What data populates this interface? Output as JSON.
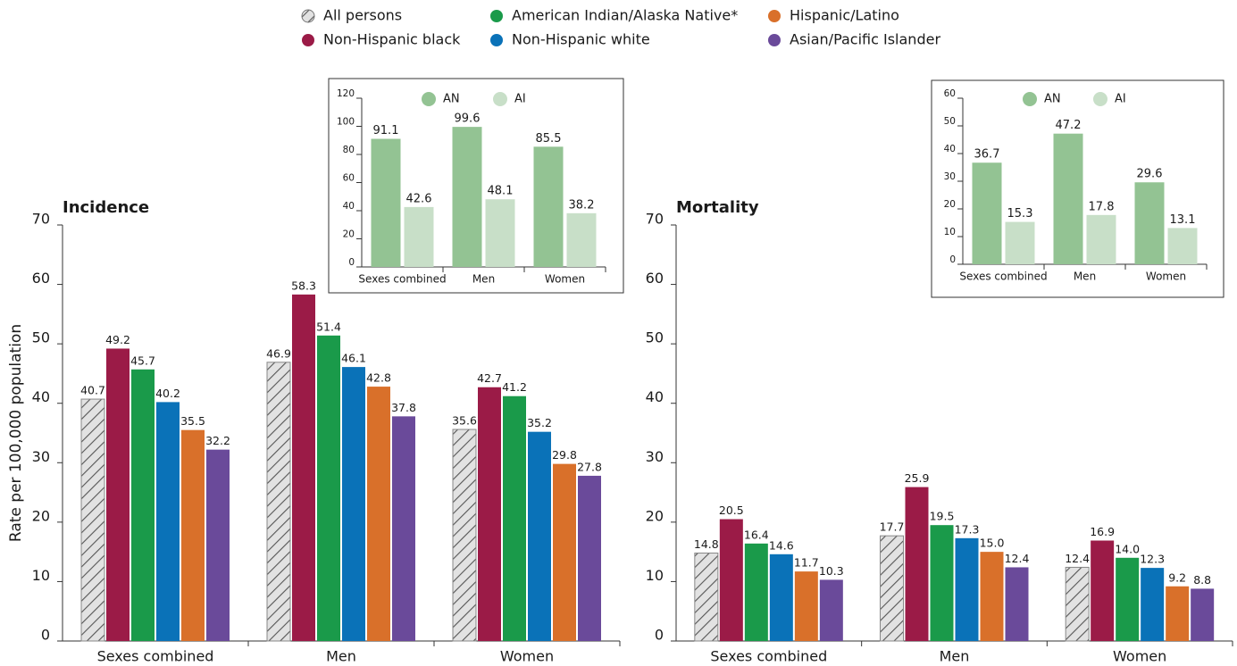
{
  "chart_data": [
    {
      "type": "bar",
      "title": "Incidence",
      "ylabel": "Rate per 100,000 population",
      "categories": [
        "Sexes combined",
        "Men",
        "Women"
      ],
      "ylim": [
        0,
        70
      ],
      "yticks": [
        0,
        10,
        20,
        30,
        40,
        50,
        60,
        70
      ],
      "series": [
        {
          "name": "All persons",
          "color": "#d9d9d9",
          "hatch": true,
          "values": [
            40.7,
            46.9,
            35.6
          ]
        },
        {
          "name": "Non-Hispanic black",
          "color": "#9b1b47",
          "values": [
            49.2,
            58.3,
            42.7
          ]
        },
        {
          "name": "American Indian/Alaska Native*",
          "color": "#1a9a4a",
          "values": [
            45.7,
            51.4,
            41.2
          ]
        },
        {
          "name": "Non-Hispanic white",
          "color": "#0a72b8",
          "values": [
            40.2,
            46.1,
            35.2
          ]
        },
        {
          "name": "Hispanic/Latino",
          "color": "#d9702a",
          "values": [
            35.5,
            42.8,
            29.8
          ]
        },
        {
          "name": "Asian/Pacific Islander",
          "color": "#6a4a9a",
          "values": [
            32.2,
            37.8,
            27.8
          ]
        }
      ]
    },
    {
      "type": "bar",
      "title": "Mortality",
      "categories": [
        "Sexes combined",
        "Men",
        "Women"
      ],
      "ylim": [
        0,
        70
      ],
      "yticks": [
        0,
        10,
        20,
        30,
        40,
        50,
        60,
        70
      ],
      "series": [
        {
          "values": [
            14.8,
            17.7,
            12.4
          ]
        },
        {
          "values": [
            20.5,
            25.9,
            16.9
          ]
        },
        {
          "values": [
            16.4,
            19.5,
            14.0
          ],
          "value_labels": [
            "16.4",
            "19.5",
            "14.0"
          ]
        },
        {
          "values": [
            14.6,
            17.3,
            12.3
          ]
        },
        {
          "values": [
            11.7,
            15.0,
            9.2
          ],
          "value_labels": [
            "11.7",
            "15.0",
            "9.2"
          ]
        },
        {
          "values": [
            10.3,
            12.4,
            8.8
          ]
        }
      ]
    },
    {
      "type": "bar",
      "categories": [
        "Sexes combined",
        "Men",
        "Women"
      ],
      "ylim": [
        0,
        120
      ],
      "yticks": [
        0,
        20,
        40,
        60,
        80,
        100,
        120
      ],
      "series": [
        {
          "name": "AN",
          "color": "#93c393",
          "values": [
            91.1,
            99.6,
            85.5
          ]
        },
        {
          "name": "AI",
          "color": "#c8dfc8",
          "values": [
            42.6,
            48.1,
            38.2
          ]
        }
      ]
    },
    {
      "type": "bar",
      "categories": [
        "Sexes combined",
        "Men",
        "Women"
      ],
      "ylim": [
        0,
        60
      ],
      "yticks": [
        0,
        10,
        20,
        30,
        40,
        50,
        60
      ],
      "series": [
        {
          "name": "AN",
          "color": "#93c393",
          "values": [
            36.7,
            47.2,
            29.6
          ]
        },
        {
          "name": "AI",
          "color": "#c8dfc8",
          "values": [
            15.3,
            17.8,
            13.1
          ]
        }
      ]
    }
  ]
}
